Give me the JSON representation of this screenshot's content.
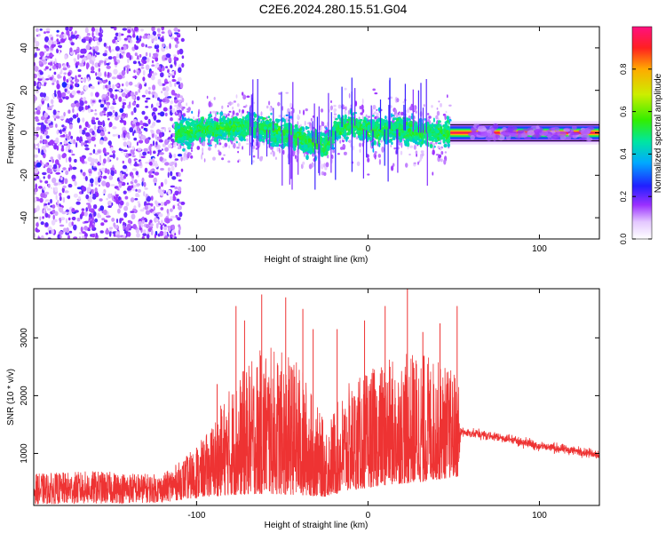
{
  "figure": {
    "title": "C2E6.2024.280.15.51.G04"
  },
  "chart_data": [
    {
      "type": "heatmap",
      "title": "C2E6.2024.280.15.51.G04",
      "xlabel": "Height of straight line (km)",
      "ylabel": "Frequency (Hz)",
      "xlim": [
        -195,
        135
      ],
      "ylim": [
        -50,
        50
      ],
      "xticks": [
        -100,
        0,
        100
      ],
      "yticks": [
        -40,
        -20,
        0,
        20,
        40
      ],
      "colorbar": {
        "label": "Normalized spectral amplitude",
        "range": [
          0,
          1
        ],
        "ticks": [
          0.0,
          0.2,
          0.4,
          0.6,
          0.8
        ]
      },
      "regions": [
        {
          "x_range": [
            -195,
            -108
          ],
          "description_level": 0.15
        },
        {
          "x_range": [
            -112,
            48
          ],
          "description_level": 0.35
        },
        {
          "x_range": [
            48,
            135
          ],
          "description_level": 0.95
        }
      ],
      "centerline": [
        {
          "x": -110,
          "y": 0
        },
        {
          "x": -90,
          "y": 2
        },
        {
          "x": -70,
          "y": 3
        },
        {
          "x": -55,
          "y": 1
        },
        {
          "x": -45,
          "y": -1
        },
        {
          "x": -35,
          "y": -4
        },
        {
          "x": -25,
          "y": -6
        },
        {
          "x": -18,
          "y": 2
        },
        {
          "x": -10,
          "y": 4
        },
        {
          "x": 0,
          "y": 1
        },
        {
          "x": 15,
          "y": 2
        },
        {
          "x": 30,
          "y": 0
        },
        {
          "x": 48,
          "y": 0
        },
        {
          "x": 135,
          "y": 0
        }
      ]
    },
    {
      "type": "line",
      "xlabel": "Height of straight line (km)",
      "ylabel": "SNR (10 * v/v)",
      "xlim": [
        -195,
        135
      ],
      "ylim": [
        100,
        3850
      ],
      "xticks": [
        -100,
        0,
        100
      ],
      "yticks": [
        1000,
        2000,
        3000
      ],
      "series": [
        {
          "color": "#ee3333",
          "envelope": [
            {
              "x": -195,
              "lower": 120,
              "upper": 650
            },
            {
              "x": -160,
              "lower": 130,
              "upper": 700
            },
            {
              "x": -120,
              "lower": 150,
              "upper": 640
            },
            {
              "x": -108,
              "lower": 200,
              "upper": 900
            },
            {
              "x": -95,
              "lower": 250,
              "upper": 1300
            },
            {
              "x": -80,
              "lower": 280,
              "upper": 2200
            },
            {
              "x": -60,
              "lower": 300,
              "upper": 2900
            },
            {
              "x": -40,
              "lower": 280,
              "upper": 2600
            },
            {
              "x": -25,
              "lower": 250,
              "upper": 1500
            },
            {
              "x": -12,
              "lower": 350,
              "upper": 2200
            },
            {
              "x": 10,
              "lower": 450,
              "upper": 2600
            },
            {
              "x": 30,
              "lower": 500,
              "upper": 2800
            },
            {
              "x": 53,
              "lower": 600,
              "upper": 2400
            },
            {
              "x": 54,
              "lower": 1250,
              "upper": 1500
            },
            {
              "x": 80,
              "lower": 1150,
              "upper": 1380
            },
            {
              "x": 100,
              "lower": 1000,
              "upper": 1260
            },
            {
              "x": 135,
              "lower": 870,
              "upper": 1100
            }
          ],
          "spikes": [
            {
              "x": -100,
              "y": 1100
            },
            {
              "x": -88,
              "y": 2200
            },
            {
              "x": -77,
              "y": 3550
            },
            {
              "x": -72,
              "y": 3300
            },
            {
              "x": -62,
              "y": 3750
            },
            {
              "x": -48,
              "y": 3700
            },
            {
              "x": -38,
              "y": 3500
            },
            {
              "x": -32,
              "y": 3150
            },
            {
              "x": -18,
              "y": 3150
            },
            {
              "x": -2,
              "y": 3300
            },
            {
              "x": 10,
              "y": 3550
            },
            {
              "x": 23,
              "y": 3850
            },
            {
              "x": 32,
              "y": 3100
            },
            {
              "x": 42,
              "y": 3250
            },
            {
              "x": 52,
              "y": 3550
            }
          ]
        }
      ]
    }
  ]
}
